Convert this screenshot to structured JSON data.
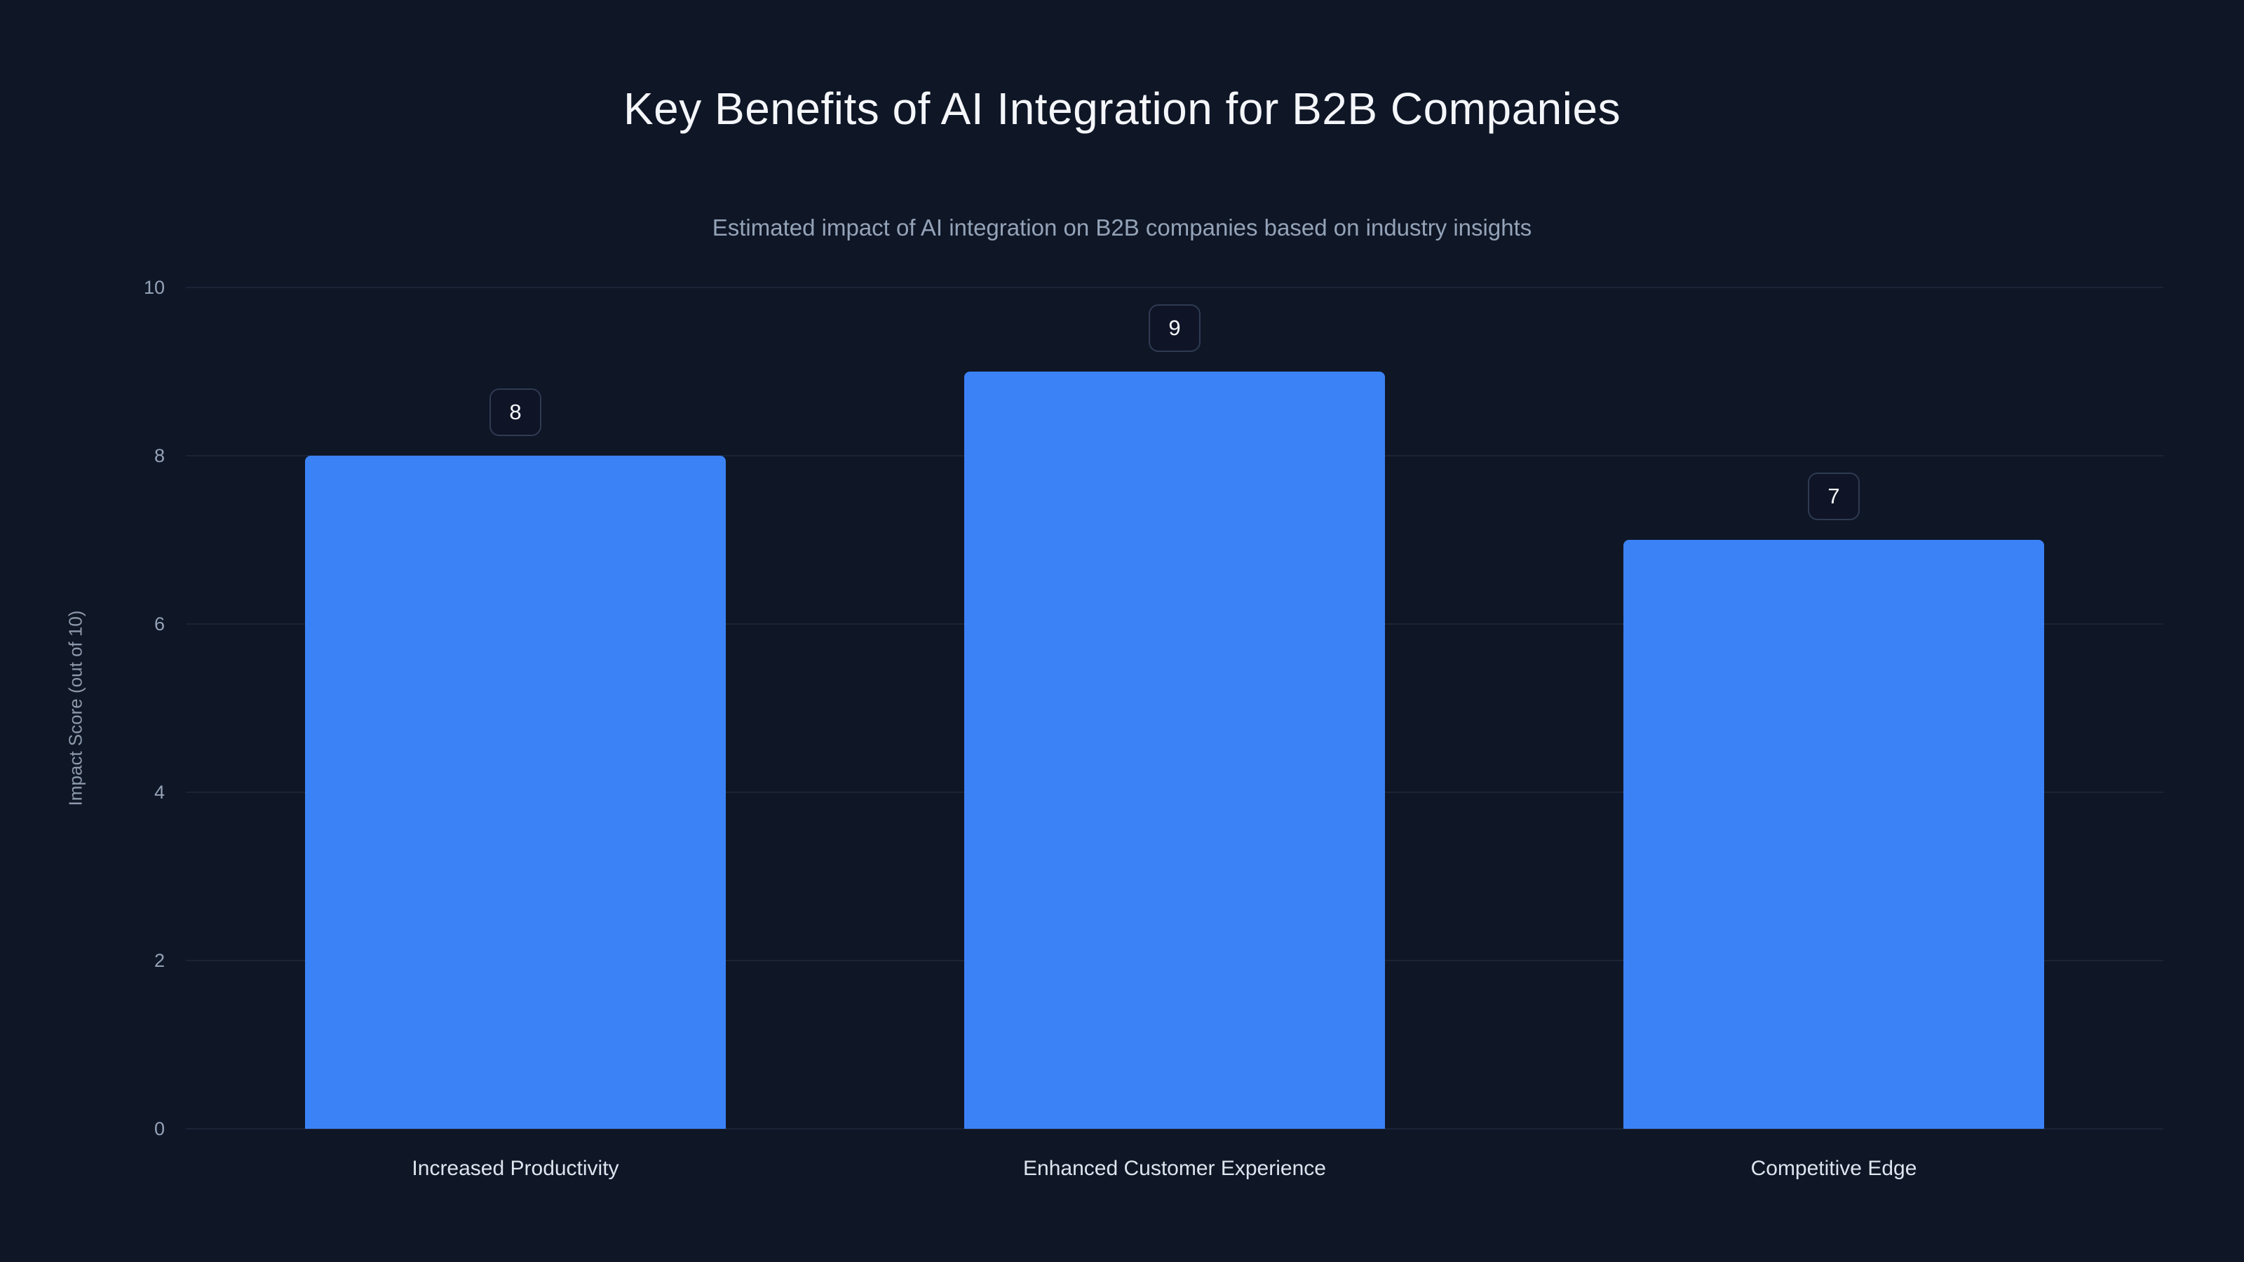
{
  "page": {
    "background": "#0f1626"
  },
  "chart_data": {
    "type": "bar",
    "title": "Key Benefits of AI Integration for B2B Companies",
    "subtitle": "Estimated impact of AI integration on B2B companies based on industry insights",
    "ylabel": "Impact Score (out of 10)",
    "xlabel": "",
    "categories": [
      "Increased Productivity",
      "Enhanced Customer Experience",
      "Competitive Edge"
    ],
    "values": [
      8,
      9,
      7
    ],
    "value_labels": [
      "8",
      "9",
      "7"
    ],
    "ylim": [
      0,
      10
    ],
    "yticks": [
      0,
      2,
      4,
      6,
      8,
      10
    ],
    "grid": true,
    "legend": false,
    "bar_color": "#3b82f6",
    "badge_border_color": "#2e3b52",
    "grid_color": "#1b2436",
    "tick_label_color": "#94a3b8",
    "category_label_color": "#dde4ee"
  }
}
